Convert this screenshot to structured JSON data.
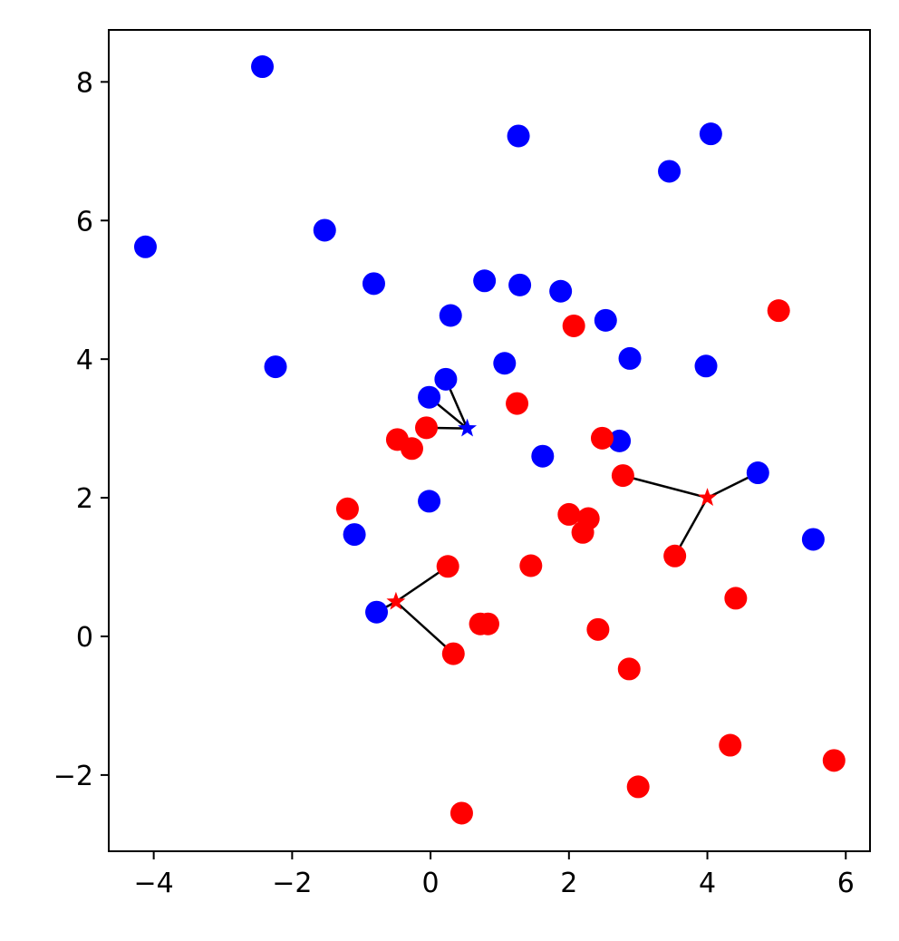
{
  "chart_data": {
    "type": "scatter",
    "title": "",
    "xlabel": "",
    "ylabel": "",
    "xlim": [
      -4.65,
      6.35
    ],
    "ylim": [
      -3.1,
      8.75
    ],
    "grid": false,
    "legend": "none",
    "x_ticks": [
      -4,
      -2,
      0,
      2,
      4,
      6
    ],
    "x_tick_labels": [
      "−4",
      "−2",
      "0",
      "2",
      "4",
      "6"
    ],
    "y_ticks": [
      -2,
      0,
      2,
      4,
      6,
      8
    ],
    "y_tick_labels": [
      "−2",
      "0",
      "2",
      "4",
      "6",
      "8"
    ],
    "colors": {
      "blue": "#0000ff",
      "red": "#ff0000",
      "edge": "#000000"
    },
    "blue_points": [
      [
        -2.43,
        8.22
      ],
      [
        -4.12,
        5.62
      ],
      [
        -1.53,
        5.86
      ],
      [
        -0.82,
        5.09
      ],
      [
        -2.24,
        3.89
      ],
      [
        1.27,
        7.22
      ],
      [
        4.05,
        7.25
      ],
      [
        3.45,
        6.71
      ],
      [
        0.78,
        5.13
      ],
      [
        1.29,
        5.07
      ],
      [
        1.88,
        4.98
      ],
      [
        0.29,
        4.63
      ],
      [
        2.53,
        4.56
      ],
      [
        1.07,
        3.94
      ],
      [
        2.88,
        4.01
      ],
      [
        3.98,
        3.9
      ],
      [
        0.22,
        3.71
      ],
      [
        -0.02,
        3.45
      ],
      [
        2.73,
        2.82
      ],
      [
        1.62,
        2.6
      ],
      [
        4.73,
        2.36
      ],
      [
        -0.02,
        1.95
      ],
      [
        -1.1,
        1.47
      ],
      [
        5.53,
        1.4
      ],
      [
        -0.78,
        0.35
      ]
    ],
    "red_points": [
      [
        5.03,
        4.7
      ],
      [
        2.07,
        4.48
      ],
      [
        1.25,
        3.36
      ],
      [
        -0.06,
        3.01
      ],
      [
        -0.48,
        2.84
      ],
      [
        -0.27,
        2.71
      ],
      [
        2.48,
        2.86
      ],
      [
        2.78,
        2.32
      ],
      [
        -1.2,
        1.84
      ],
      [
        2.0,
        1.76
      ],
      [
        2.28,
        1.7
      ],
      [
        2.2,
        1.5
      ],
      [
        3.53,
        1.16
      ],
      [
        0.25,
        1.01
      ],
      [
        1.45,
        1.02
      ],
      [
        4.41,
        0.55
      ],
      [
        0.72,
        0.18
      ],
      [
        0.83,
        0.18
      ],
      [
        2.42,
        0.1
      ],
      [
        0.33,
        -0.25
      ],
      [
        2.87,
        -0.47
      ],
      [
        4.33,
        -1.57
      ],
      [
        5.83,
        -1.79
      ],
      [
        3.0,
        -2.17
      ],
      [
        0.45,
        -2.55
      ]
    ],
    "query_points": [
      {
        "color": "blue",
        "x": 0.53,
        "y": 3.0,
        "neighbors": [
          [
            -0.06,
            3.01
          ],
          [
            0.22,
            3.71
          ],
          [
            -0.02,
            3.45
          ]
        ]
      },
      {
        "color": "red",
        "x": 4.0,
        "y": 2.0,
        "neighbors": [
          [
            2.78,
            2.32
          ],
          [
            4.73,
            2.36
          ],
          [
            3.53,
            1.16
          ]
        ]
      },
      {
        "color": "red",
        "x": -0.5,
        "y": 0.5,
        "neighbors": [
          [
            0.25,
            1.01
          ],
          [
            -0.78,
            0.35
          ],
          [
            0.33,
            -0.25
          ]
        ]
      }
    ]
  }
}
